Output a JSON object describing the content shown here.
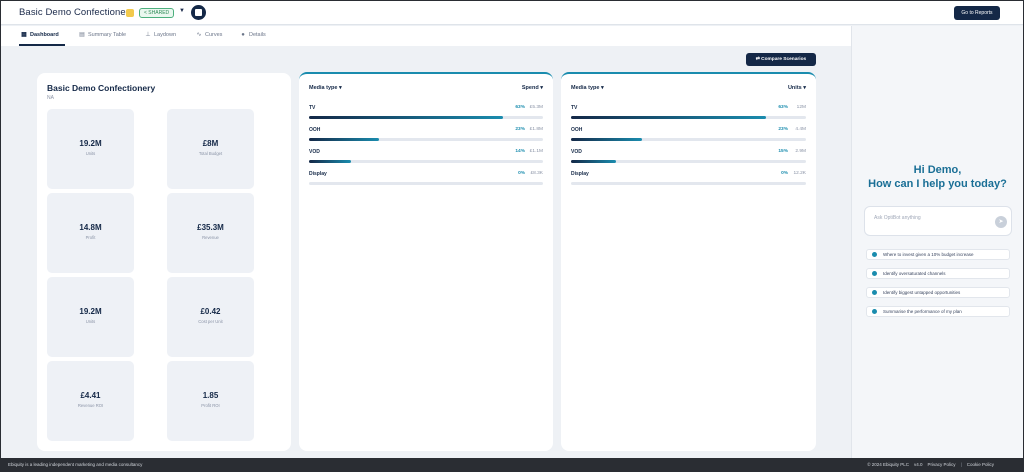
{
  "header": {
    "app_title": "Basic Demo Confectionery",
    "shared_badge": "< SHARED",
    "goto_button": "Go to Reports"
  },
  "tabs": [
    {
      "label": "Dashboard",
      "icon": "grid-icon",
      "active": true
    },
    {
      "label": "Summary Table",
      "icon": "table-icon",
      "active": false
    },
    {
      "label": "Laydown",
      "icon": "laydown-icon",
      "active": false
    },
    {
      "label": "Curves",
      "icon": "curve-icon",
      "active": false
    },
    {
      "label": "Details",
      "icon": "info-icon",
      "active": false
    }
  ],
  "compare_button": "Compare Scenarios",
  "summary": {
    "title": "Basic Demo Confectionery",
    "subtitle": "NA",
    "kpis": [
      {
        "value": "19.2M",
        "label": "Units"
      },
      {
        "value": "£8M",
        "label": "Total Budget"
      },
      {
        "value": "14.8M",
        "label": "Profit"
      },
      {
        "value": "£35.3M",
        "label": "Revenue"
      },
      {
        "value": "19.2M",
        "label": "Units"
      },
      {
        "value": "£0.42",
        "label": "Cost per Unit"
      },
      {
        "value": "£4.41",
        "label": "Revenue ROI"
      },
      {
        "value": "1.85",
        "label": "Profit ROI"
      }
    ]
  },
  "spend_card": {
    "left_label": "Media type ▾",
    "right_label": "Spend ▾",
    "rows": [
      {
        "label": "TV",
        "pct": "63%",
        "value": "£5.3M",
        "fill": 0.83
      },
      {
        "label": "OOH",
        "pct": "23%",
        "value": "£1.8M",
        "fill": 0.3
      },
      {
        "label": "VOD",
        "pct": "14%",
        "value": "£1.1M",
        "fill": 0.18
      },
      {
        "label": "Display",
        "pct": "0%",
        "value": "£8.3K",
        "fill": 0.0
      }
    ]
  },
  "units_card": {
    "left_label": "Media type ▾",
    "right_label": "Units ▾",
    "rows": [
      {
        "label": "TV",
        "pct": "63%",
        "value": "12M",
        "fill": 0.83
      },
      {
        "label": "OOH",
        "pct": "23%",
        "value": "4.4M",
        "fill": 0.3
      },
      {
        "label": "VOD",
        "pct": "15%",
        "value": "2.9M",
        "fill": 0.19
      },
      {
        "label": "Display",
        "pct": "0%",
        "value": "12.2K",
        "fill": 0.0
      }
    ]
  },
  "assistant": {
    "greeting_line1": "Hi Demo,",
    "greeting_line2": "How can I help you today?",
    "placeholder": "Ask OptiBot anything",
    "suggestions": [
      "Where to invest given a 10% budget increase",
      "Identify oversaturated channels",
      "Identify biggest untapped opportunities",
      "Summarise the performance of my plan"
    ]
  },
  "footer": {
    "left": "Ebiquity is a leading independent marketing and media consultancy",
    "copyright": "© 2024 Ebiquity PLC",
    "version": "v4.0",
    "privacy": "Privacy Policy",
    "cookie": "Cookie Policy"
  }
}
